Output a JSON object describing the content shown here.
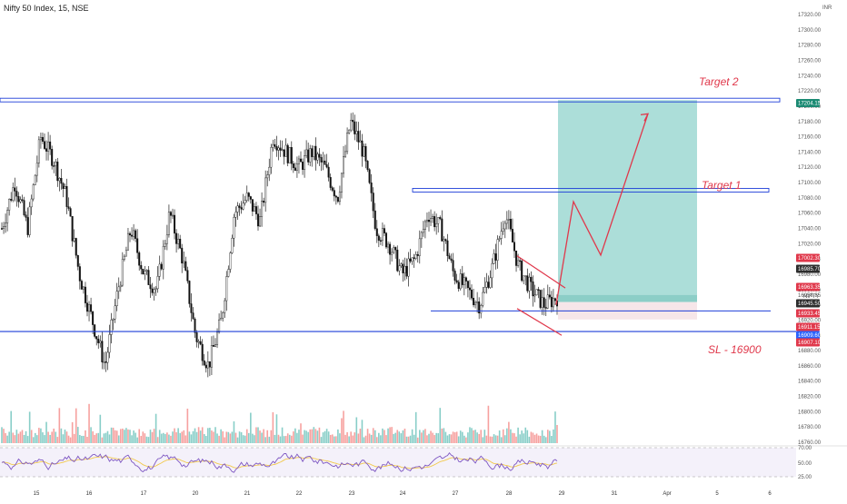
{
  "header": {
    "symbol": "Nifty 50 Index, 15, NSE"
  },
  "currency": "INR",
  "colors": {
    "up": "#000000",
    "down": "#000000",
    "level_line": "#1e3fd8",
    "target_text": "#e0384b",
    "path_line": "#e0384b",
    "profit_zone": "#a8dcd7",
    "stop_zone": "#f6e6e9",
    "rsi_line": "#7e57c2",
    "rsi_ma": "#f2c94c",
    "volume_bar": "#26a69a",
    "volume_bar_dn": "#ef5350"
  },
  "chart_data": {
    "type": "candlestick",
    "y_axis": {
      "ticks": [
        "17320.00",
        "17300.00",
        "17280.00",
        "17260.00",
        "17240.00",
        "17220.00",
        "17200.00",
        "17180.00",
        "17160.00",
        "17140.00",
        "17120.00",
        "17100.00",
        "17080.00",
        "17060.00",
        "17040.00",
        "17020.00",
        "17000.00",
        "16980.00",
        "16960.00",
        "16940.00",
        "16920.00",
        "16900.00",
        "16880.00",
        "16860.00",
        "16840.00",
        "16820.00",
        "16800.00",
        "16780.00",
        "16760.00"
      ],
      "ylim": [
        16750,
        17325
      ]
    },
    "x_axis": {
      "ticks": [
        "15",
        "16",
        "17",
        "20",
        "21",
        "22",
        "23",
        "24",
        "27",
        "28",
        "29",
        "31",
        "Apr",
        "5",
        "6"
      ]
    },
    "price_labels": [
      {
        "value": "17204.15",
        "color": "#1b8a73"
      },
      {
        "value": "17002.30",
        "color": "#e0384b"
      },
      {
        "value": "16985.70",
        "color": "#2d2d2d"
      },
      {
        "value": "16963.35",
        "color": "#e0384b"
      },
      {
        "value": "16945.50",
        "color": "#2d2d2d"
      },
      {
        "value": "16933.45",
        "color": "#e0384b"
      },
      {
        "value": "16911.15",
        "color": "#e0384b"
      },
      {
        "value": "16909.60",
        "color": "#2962ff"
      },
      {
        "value": "16907.10",
        "color": "#e0384b"
      }
    ],
    "nifty_label": "NIFTY",
    "nifty_value": "16956.85",
    "horizontal_levels": [
      17208,
      17090,
      16932,
      16905
    ],
    "targets": [
      {
        "text": "Target 2",
        "price": 17220
      },
      {
        "text": "Target 1",
        "price": 17095
      }
    ],
    "stop_loss": {
      "text": "SL - 16900",
      "price": 16880
    },
    "position": {
      "entry": 16953,
      "target": 17208,
      "stop": 16935
    },
    "projected_path": [
      16940,
      17075,
      17005,
      17190
    ],
    "candles_anchor": [
      17040,
      17100,
      17040,
      17160,
      17130,
      17080,
      16980,
      16920,
      16860,
      16960,
      17040,
      16980,
      16960,
      17060,
      17000,
      16900,
      16860,
      16920,
      17060,
      17080,
      17050,
      17160,
      17140,
      17120,
      17140,
      17120,
      17080,
      17180,
      17140,
      17040,
      17020,
      16980,
      17000,
      17060,
      17040,
      16980,
      16960,
      16940,
      16990,
      17060,
      16990,
      16960,
      16940,
      16950
    ],
    "rsi": {
      "levels": [
        "70.00",
        "50.00",
        "25.00"
      ]
    }
  }
}
